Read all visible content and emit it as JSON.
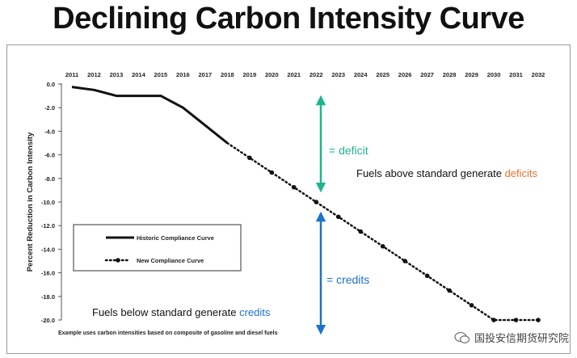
{
  "title": "Declining Carbon Intensity Curve",
  "chart_data": {
    "type": "line",
    "ylabel": "Percent Reduction in Carbon Intensity",
    "xlabel": "",
    "x_ticks": [
      "2011",
      "2012",
      "2013",
      "2014",
      "2015",
      "2016",
      "2017",
      "2018",
      "2019",
      "2020",
      "2021",
      "2022",
      "2023",
      "2024",
      "2025",
      "2026",
      "2027",
      "2028",
      "2029",
      "2030",
      "2031",
      "2032"
    ],
    "y_ticks": [
      "0.0",
      "-2.0",
      "-4.0",
      "-6.0",
      "-8.0",
      "-10.0",
      "-12.0",
      "-14.0",
      "-16.0",
      "-18.0",
      "-20.0"
    ],
    "ylim": [
      -20,
      0
    ],
    "x_axis_position": "top",
    "series": [
      {
        "name": "Historic Compliance Curve",
        "style": "solid",
        "x": [
          2011,
          2012,
          2013,
          2014,
          2015,
          2016,
          2017,
          2018
        ],
        "y": [
          -0.25,
          -0.5,
          -1.0,
          -1.0,
          -1.0,
          -2.0,
          -3.5,
          -5.0
        ]
      },
      {
        "name": "New Compliance Curve",
        "style": "dotted",
        "x": [
          2018,
          2019,
          2020,
          2021,
          2022,
          2023,
          2024,
          2025,
          2026,
          2027,
          2028,
          2029,
          2030,
          2031,
          2032
        ],
        "y": [
          -5.0,
          -6.25,
          -7.5,
          -8.75,
          -10.0,
          -11.25,
          -12.5,
          -13.75,
          -15.0,
          -16.25,
          -17.5,
          -18.75,
          -20.0,
          -20.0,
          -20.0
        ]
      }
    ],
    "legend": {
      "placement": "lower-left",
      "items": [
        "Historic Compliance Curve",
        "New Compliance Curve"
      ]
    },
    "annotations": {
      "deficit_arrow_label": "= deficit",
      "credits_arrow_label": "= credits",
      "above_text": "Fuels above standard generate ",
      "above_highlight": "deficits",
      "below_text": "Fuels below standard generate ",
      "below_highlight": "credits",
      "footnote": "Example uses carbon intensities based on composite of gasoline and diesel fuels"
    },
    "colors": {
      "line": "#111111",
      "deficit": "#1fb58e",
      "credits": "#1e72c7",
      "deficits_word": "#e8722a",
      "credits_word": "#1e72c7"
    }
  },
  "watermark": "国投安信期货研究院"
}
